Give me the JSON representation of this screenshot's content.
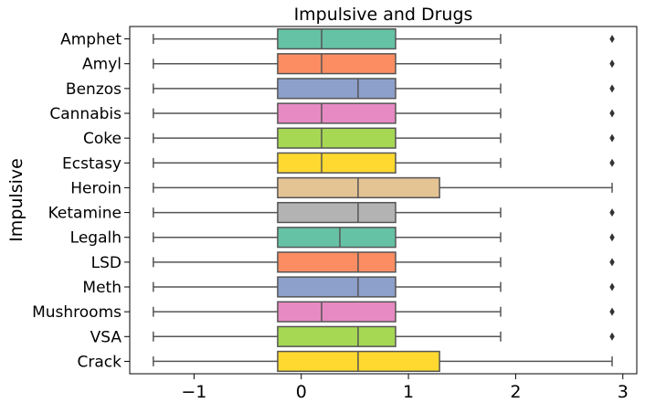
{
  "chart_data": {
    "type": "boxplot",
    "orientation": "horizontal",
    "title": "Impulsive and Drugs",
    "xlabel": "",
    "ylabel": "Impulsive",
    "xlim": [
      -1.6,
      3.13
    ],
    "xticks": [
      -1,
      0,
      1,
      2,
      3
    ],
    "xtick_labels": [
      "−1",
      "0",
      "1",
      "2",
      "3"
    ],
    "grid": false,
    "categories": [
      "Amphet",
      "Amyl",
      "Benzos",
      "Cannabis",
      "Coke",
      "Ecstasy",
      "Heroin",
      "Ketamine",
      "Legalh",
      "LSD",
      "Meth",
      "Mushrooms",
      "VSA",
      "Crack"
    ],
    "colors": [
      "#66c2a5",
      "#fc8d62",
      "#8da0cb",
      "#e78ac3",
      "#a6d854",
      "#ffd92f",
      "#e5c494",
      "#b3b3b3",
      "#66c2a5",
      "#fc8d62",
      "#8da0cb",
      "#e78ac3",
      "#a6d854",
      "#ffd92f"
    ],
    "boxes": [
      {
        "min": -1.38,
        "q1": -0.22,
        "median": 0.19,
        "q3": 0.88,
        "max": 1.86,
        "outliers": [
          2.9
        ]
      },
      {
        "min": -1.38,
        "q1": -0.22,
        "median": 0.19,
        "q3": 0.88,
        "max": 1.86,
        "outliers": [
          2.9
        ]
      },
      {
        "min": -1.38,
        "q1": -0.22,
        "median": 0.53,
        "q3": 0.88,
        "max": 1.86,
        "outliers": [
          2.9
        ]
      },
      {
        "min": -1.38,
        "q1": -0.22,
        "median": 0.19,
        "q3": 0.88,
        "max": 1.86,
        "outliers": [
          2.9
        ]
      },
      {
        "min": -1.38,
        "q1": -0.22,
        "median": 0.19,
        "q3": 0.88,
        "max": 1.86,
        "outliers": [
          2.9
        ]
      },
      {
        "min": -1.38,
        "q1": -0.22,
        "median": 0.19,
        "q3": 0.88,
        "max": 1.86,
        "outliers": [
          2.9
        ]
      },
      {
        "min": -1.38,
        "q1": -0.22,
        "median": 0.53,
        "q3": 1.29,
        "max": 2.9,
        "outliers": []
      },
      {
        "min": -1.38,
        "q1": -0.22,
        "median": 0.53,
        "q3": 0.88,
        "max": 1.86,
        "outliers": [
          2.9
        ]
      },
      {
        "min": -1.38,
        "q1": -0.22,
        "median": 0.36,
        "q3": 0.88,
        "max": 1.86,
        "outliers": [
          2.9
        ]
      },
      {
        "min": -1.38,
        "q1": -0.22,
        "median": 0.53,
        "q3": 0.88,
        "max": 1.86,
        "outliers": [
          2.9
        ]
      },
      {
        "min": -1.38,
        "q1": -0.22,
        "median": 0.53,
        "q3": 0.88,
        "max": 1.86,
        "outliers": [
          2.9
        ]
      },
      {
        "min": -1.38,
        "q1": -0.22,
        "median": 0.19,
        "q3": 0.88,
        "max": 1.86,
        "outliers": [
          2.9
        ]
      },
      {
        "min": -1.38,
        "q1": -0.22,
        "median": 0.53,
        "q3": 0.88,
        "max": 1.86,
        "outliers": [
          2.9
        ]
      },
      {
        "min": -1.38,
        "q1": -0.22,
        "median": 0.53,
        "q3": 1.29,
        "max": 2.9,
        "outliers": []
      }
    ]
  }
}
